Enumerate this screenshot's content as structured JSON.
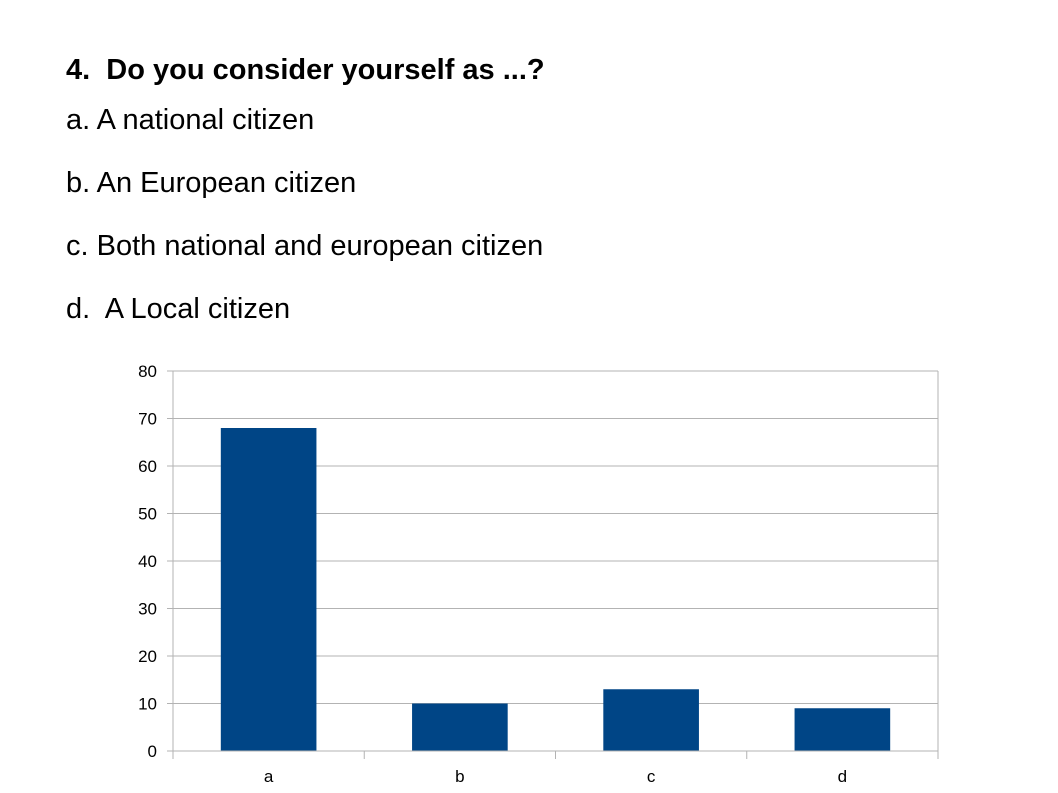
{
  "slide": {
    "question": "4.  Do you consider yourself as ...?",
    "options": [
      "a. A national citizen",
      "b. An European citizen",
      "c. Both national and european citizen",
      "d.  A Local citizen"
    ]
  },
  "chart_data": {
    "type": "bar",
    "categories": [
      "a",
      "b",
      "c",
      "d"
    ],
    "values": [
      68,
      10,
      13,
      9
    ],
    "ylim": [
      0,
      80
    ],
    "yticks": [
      0,
      10,
      20,
      30,
      40,
      50,
      60,
      70,
      80
    ],
    "grid": true,
    "legend": "none",
    "bar_color": "#004586",
    "title": "",
    "xlabel": "",
    "ylabel": ""
  }
}
